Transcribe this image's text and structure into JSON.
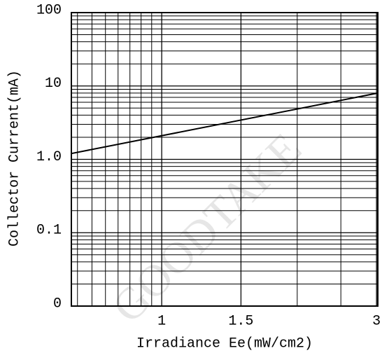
{
  "chart_data": {
    "type": "line",
    "x_label": "Irradiance Ee(mW/cm2)",
    "y_label": "Collector Current(mA)",
    "watermark": "GOODTAKE",
    "x": [
      0.63,
      1,
      3.02
    ],
    "series": [
      {
        "color": "#000000",
        "values": [
          1.2,
          2.1,
          8
        ]
      }
    ],
    "xlim": [
      0.63,
      3.02
    ],
    "x_log": true,
    "xticks": [
      1,
      1.5,
      3
    ],
    "ylim": [
      0.01,
      100
    ],
    "y_log": true,
    "yticks": [
      {
        "value": 0.01,
        "label": "0"
      },
      0.1,
      {
        "value": 1,
        "label": "1.0"
      },
      10,
      100
    ],
    "grid": true
  }
}
